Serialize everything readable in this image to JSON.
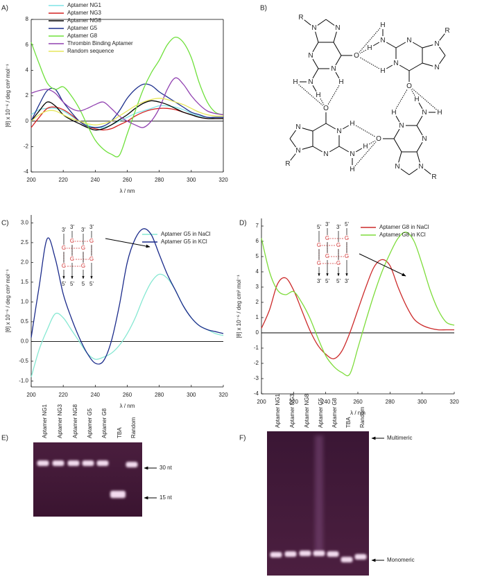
{
  "chart_data": [
    {
      "type": "line",
      "panel": "A)",
      "xlabel": "λ / nm",
      "ylabel": "[θ] x 10⁻⁶ / deg cm² mol⁻¹",
      "x": [
        200,
        205,
        210,
        215,
        220,
        225,
        230,
        235,
        240,
        245,
        250,
        255,
        260,
        265,
        270,
        275,
        280,
        285,
        290,
        295,
        300,
        305,
        310,
        315,
        320
      ],
      "xlim": [
        200,
        320
      ],
      "xticks": [
        200,
        220,
        240,
        260,
        280,
        300,
        320
      ],
      "ylim": [
        -4,
        8
      ],
      "yticks": [
        -4,
        -2,
        0,
        2,
        4,
        6,
        8
      ],
      "series": [
        {
          "name": "Aptamer NG1",
          "color": "#7fe3e6",
          "values": [
            0.5,
            0.9,
            1.0,
            1.0,
            0.8,
            0.4,
            0,
            -0.3,
            -0.5,
            -0.5,
            -0.3,
            0,
            0.3,
            0.6,
            0.8,
            1.0,
            1.2,
            1.2,
            1.1,
            0.9,
            0.6,
            0.4,
            0.3,
            0.2,
            0.2
          ]
        },
        {
          "name": "Aptamer NG3",
          "color": "#d42020",
          "values": [
            -0.5,
            0.3,
            1.0,
            1.1,
            0.9,
            0.5,
            0,
            -0.4,
            -0.6,
            -0.7,
            -0.6,
            -0.3,
            0,
            0.4,
            0.7,
            0.9,
            1.0,
            1.0,
            0.9,
            0.7,
            0.5,
            0.3,
            0.2,
            0.2,
            0.2
          ]
        },
        {
          "name": "Aptamer NG8",
          "color": "#000000",
          "values": [
            0,
            0.8,
            1.5,
            1.2,
            0.5,
            0.1,
            -0.2,
            -0.5,
            -0.7,
            -0.6,
            -0.3,
            0.1,
            0.5,
            1.0,
            1.4,
            1.6,
            1.5,
            1.3,
            1.0,
            0.7,
            0.5,
            0.3,
            0.2,
            0.2,
            0.2
          ]
        },
        {
          "name": "Aptamer G5",
          "color": "#1c2f8c",
          "values": [
            0,
            1.3,
            2.4,
            2.5,
            1.5,
            0.7,
            0,
            -0.4,
            -0.5,
            -0.4,
            0,
            0.8,
            1.8,
            2.5,
            2.9,
            2.8,
            2.3,
            1.9,
            1.5,
            1.1,
            0.7,
            0.5,
            0.3,
            0.3,
            0.3
          ]
        },
        {
          "name": "Aptamer G8",
          "color": "#6ee03a",
          "values": [
            6.2,
            4.5,
            3.0,
            2.5,
            2.7,
            2.0,
            1.0,
            -0.3,
            -1.5,
            -2.2,
            -2.6,
            -2.7,
            -1.0,
            0.8,
            2.5,
            3.8,
            4.8,
            6.0,
            6.6,
            6.2,
            5.0,
            3.0,
            1.5,
            0.7,
            0.5
          ]
        },
        {
          "name": "Thrombin Binding Aptamer",
          "color": "#9040b0",
          "values": [
            2.2,
            2.4,
            2.5,
            2.2,
            1.5,
            1.0,
            0.8,
            1.0,
            1.3,
            1.5,
            1.0,
            0.4,
            0,
            -0.3,
            -0.5,
            0,
            1.0,
            2.5,
            3.4,
            2.9,
            2.0,
            1.3,
            0.8,
            0.6,
            0.5
          ]
        },
        {
          "name": "Random sequence",
          "color": "#e6e65a",
          "values": [
            0,
            0.5,
            0.8,
            0.8,
            0.5,
            0.2,
            0,
            -0.2,
            -0.3,
            -0.2,
            0,
            0.4,
            0.8,
            1.2,
            1.5,
            1.7,
            1.8,
            1.7,
            1.5,
            1.3,
            1.0,
            0.7,
            0.5,
            0.4,
            0.4
          ]
        }
      ]
    },
    {
      "type": "line",
      "panel": "C)",
      "xlabel": "λ / nm",
      "ylabel": "[θ] x 10⁻⁶ / deg cm² mol⁻¹",
      "x": [
        200,
        205,
        210,
        215,
        220,
        225,
        230,
        235,
        240,
        245,
        250,
        255,
        260,
        265,
        270,
        275,
        280,
        285,
        290,
        295,
        300,
        305,
        310,
        315,
        320
      ],
      "xlim": [
        200,
        320
      ],
      "xticks": [
        200,
        220,
        240,
        260,
        280,
        300,
        320
      ],
      "ylim": [
        -1.15,
        3.2
      ],
      "yticks": [
        {
          "value": -1,
          "label": "-1.0"
        },
        -0.5,
        {
          "value": 0,
          "label": "0.0"
        },
        0.5,
        {
          "value": 1,
          "label": "1.0"
        },
        1.5,
        {
          "value": 2,
          "label": "2.0"
        },
        2.5,
        {
          "value": 3,
          "label": "3.0"
        }
      ],
      "series": [
        {
          "name": "Aptamer G5 in NaCl",
          "color": "#86e8d2",
          "values": [
            -0.9,
            -0.2,
            0.3,
            0.7,
            0.6,
            0.3,
            0,
            -0.3,
            -0.45,
            -0.4,
            -0.3,
            -0.1,
            0.2,
            0.6,
            1.1,
            1.5,
            1.7,
            1.6,
            1.3,
            0.9,
            0.6,
            0.4,
            0.3,
            0.2,
            0.15
          ]
        },
        {
          "name": "Aptamer G5 in KCl",
          "color": "#1a2a8a",
          "values": [
            0.1,
            1.4,
            2.6,
            2.1,
            1.2,
            0.6,
            0.1,
            -0.3,
            -0.55,
            -0.5,
            0,
            0.9,
            2.0,
            2.6,
            2.85,
            2.7,
            2.2,
            1.7,
            1.3,
            0.9,
            0.6,
            0.4,
            0.3,
            0.25,
            0.2
          ]
        }
      ],
      "inset": {
        "base": "G",
        "top_labels": [
          "3'",
          "3'",
          "3'",
          "3'"
        ],
        "bottom_labels": [
          "5'",
          "5'",
          "5",
          "5'"
        ]
      }
    },
    {
      "type": "line",
      "panel": "D)",
      "xlabel": "λ / nm",
      "ylabel": "[θ] x 10⁻⁶ / deg cm² mol⁻¹",
      "x": [
        200,
        205,
        210,
        215,
        220,
        225,
        230,
        235,
        240,
        245,
        250,
        255,
        260,
        265,
        270,
        275,
        280,
        285,
        290,
        295,
        300,
        305,
        310,
        315,
        320
      ],
      "xlim": [
        200,
        320
      ],
      "xticks": [
        200,
        220,
        240,
        260,
        280,
        300,
        320
      ],
      "ylim": [
        -4,
        7.5
      ],
      "yticks": [
        -4,
        -3,
        -2,
        -1,
        0,
        1,
        2,
        3,
        4,
        5,
        6,
        7
      ],
      "series": [
        {
          "name": "Aptamer G8 in NaCl",
          "color": "#cc2a2a",
          "values": [
            0.3,
            1.5,
            3.2,
            3.6,
            2.8,
            1.5,
            0.2,
            -0.8,
            -1.4,
            -1.7,
            -1.2,
            0,
            1.5,
            3.0,
            4.3,
            4.8,
            4.4,
            3.0,
            1.8,
            0.9,
            0.5,
            0.3,
            0.2,
            0.2,
            0.2
          ]
        },
        {
          "name": "Aptamer G8 in KCl",
          "color": "#7ddc3a",
          "values": [
            6.2,
            4.0,
            2.8,
            2.5,
            2.7,
            2.0,
            1.0,
            -0.3,
            -1.5,
            -2.2,
            -2.6,
            -2.7,
            -1.0,
            0.8,
            2.5,
            4.0,
            5.2,
            6.2,
            6.6,
            6.0,
            4.5,
            2.8,
            1.5,
            0.7,
            0.5
          ]
        }
      ],
      "inset": {
        "base": "G",
        "top_labels": [
          "5'",
          "3'",
          "3'",
          "5'"
        ],
        "bottom_labels": [
          "3'",
          "5'",
          "5'",
          "3'"
        ]
      }
    }
  ],
  "diagram": {
    "panel": "B)",
    "bases": [
      {
        "atoms": [
          "N",
          "N",
          "N",
          "N",
          "N",
          "O",
          "H",
          "H",
          "H",
          "R"
        ]
      },
      {
        "atoms": [
          "N",
          "N",
          "N",
          "N",
          "N",
          "O",
          "H",
          "H",
          "H",
          "R"
        ]
      },
      {
        "atoms": [
          "N",
          "N",
          "N",
          "N",
          "N",
          "O",
          "H",
          "H",
          "H",
          "R"
        ]
      },
      {
        "atoms": [
          "N",
          "N",
          "N",
          "N",
          "N",
          "O",
          "H",
          "H",
          "H",
          "R"
        ]
      }
    ]
  },
  "gels": [
    {
      "panel": "E)",
      "lanes": [
        "Aptamer NG1",
        "Aptamer NG3",
        "Aptamer NG8",
        "Aptamer G5",
        "Aptamer G8",
        "TBA",
        "Random"
      ],
      "markers": [
        "30 nt",
        "15 nt"
      ]
    },
    {
      "panel": "F)",
      "lanes": [
        "Aptamer NG1",
        "Aptamer NG3",
        "Aptamer NG8",
        "Aptamer G5",
        "Aptamer G8",
        "TBA",
        "Random"
      ],
      "markers": [
        "Multimeric",
        "Monomeric"
      ]
    }
  ]
}
